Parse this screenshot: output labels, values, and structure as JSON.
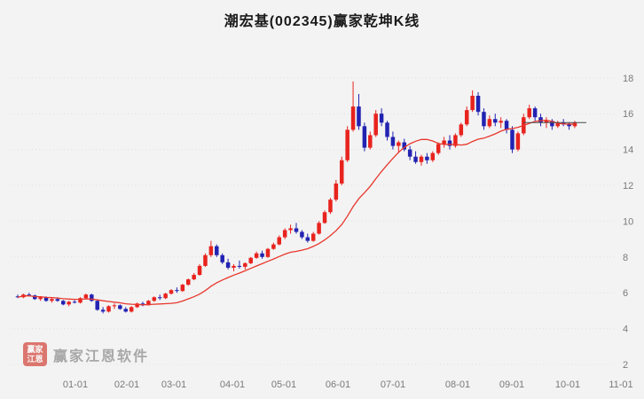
{
  "title": "潮宏基(002345)赢家乾坤K线",
  "watermark": {
    "logo_top": "赢家",
    "logo_bottom": "江恩",
    "text": "赢家江恩软件"
  },
  "colors": {
    "up": "#e8231e",
    "down": "#2222b2",
    "ma_line": "#e8372c",
    "price_line": "#4a4a4a",
    "grid": "#e0e0e0",
    "axis_text": "#7a7a7a",
    "title_text": "#1a1a1a",
    "bg": "#f3f3f3",
    "watermark_text": "#a0a0a0",
    "logo_bg": "#d03b30"
  },
  "chart_data": {
    "type": "candlestick",
    "title": "潮宏基(002345)赢家乾坤K线",
    "ylim": [
      2,
      18.6
    ],
    "y_ticks": [
      2,
      4,
      6,
      8,
      10,
      12,
      14,
      16,
      18
    ],
    "x_ticks": [
      "01-01",
      "02-01",
      "03-01",
      "04-01",
      "05-01",
      "06-01",
      "07-01",
      "08-01",
      "09-01",
      "10-01",
      "11-01"
    ],
    "grid": "dotted-horizontal",
    "legend": "none",
    "ma_window": 15,
    "last_price_line": 15.5,
    "candles": [
      [
        5.8,
        5.9,
        5.7,
        5.75
      ],
      [
        5.75,
        5.95,
        5.7,
        5.9
      ],
      [
        5.9,
        6.0,
        5.8,
        5.85
      ],
      [
        5.85,
        5.9,
        5.6,
        5.65
      ],
      [
        5.65,
        5.8,
        5.55,
        5.75
      ],
      [
        5.75,
        5.8,
        5.5,
        5.55
      ],
      [
        5.55,
        5.7,
        5.45,
        5.65
      ],
      [
        5.65,
        5.75,
        5.5,
        5.55
      ],
      [
        5.55,
        5.6,
        5.3,
        5.35
      ],
      [
        5.35,
        5.55,
        5.25,
        5.5
      ],
      [
        5.5,
        5.6,
        5.4,
        5.45
      ],
      [
        5.45,
        5.75,
        5.4,
        5.7
      ],
      [
        5.7,
        5.95,
        5.65,
        5.9
      ],
      [
        5.9,
        5.95,
        5.5,
        5.55
      ],
      [
        5.55,
        5.6,
        5.0,
        5.05
      ],
      [
        5.05,
        5.2,
        4.85,
        4.95
      ],
      [
        4.95,
        5.3,
        4.9,
        5.25
      ],
      [
        5.25,
        5.4,
        5.1,
        5.3
      ],
      [
        5.3,
        5.35,
        5.05,
        5.1
      ],
      [
        5.1,
        5.2,
        4.9,
        4.95
      ],
      [
        4.95,
        5.25,
        4.9,
        5.2
      ],
      [
        5.2,
        5.45,
        5.15,
        5.4
      ],
      [
        5.4,
        5.5,
        5.25,
        5.3
      ],
      [
        5.3,
        5.6,
        5.3,
        5.55
      ],
      [
        5.55,
        5.8,
        5.5,
        5.75
      ],
      [
        5.75,
        5.9,
        5.6,
        5.7
      ],
      [
        5.7,
        6.0,
        5.65,
        5.95
      ],
      [
        5.95,
        6.2,
        5.9,
        6.15
      ],
      [
        6.15,
        6.3,
        6.0,
        6.1
      ],
      [
        6.1,
        6.5,
        6.05,
        6.45
      ],
      [
        6.45,
        6.8,
        6.4,
        6.75
      ],
      [
        6.75,
        7.1,
        6.7,
        7.0
      ],
      [
        7.0,
        7.6,
        6.95,
        7.5
      ],
      [
        7.5,
        8.2,
        7.45,
        8.1
      ],
      [
        8.1,
        8.9,
        8.0,
        8.6
      ],
      [
        8.6,
        8.7,
        8.0,
        8.1
      ],
      [
        8.1,
        8.2,
        7.6,
        7.7
      ],
      [
        7.7,
        7.9,
        7.3,
        7.4
      ],
      [
        7.4,
        7.6,
        7.2,
        7.5
      ],
      [
        7.5,
        7.8,
        7.35,
        7.45
      ],
      [
        7.45,
        7.7,
        7.3,
        7.65
      ],
      [
        7.65,
        8.0,
        7.6,
        7.95
      ],
      [
        7.95,
        8.3,
        7.9,
        8.2
      ],
      [
        8.2,
        8.35,
        7.9,
        8.0
      ],
      [
        8.0,
        8.5,
        7.95,
        8.45
      ],
      [
        8.45,
        8.8,
        8.4,
        8.7
      ],
      [
        8.7,
        9.2,
        8.65,
        9.1
      ],
      [
        9.1,
        9.6,
        9.0,
        9.5
      ],
      [
        9.5,
        9.8,
        9.3,
        9.6
      ],
      [
        9.6,
        9.9,
        9.3,
        9.4
      ],
      [
        9.4,
        9.5,
        9.0,
        9.1
      ],
      [
        9.1,
        9.3,
        8.8,
        8.9
      ],
      [
        8.9,
        9.4,
        8.85,
        9.3
      ],
      [
        9.3,
        10.0,
        9.25,
        9.9
      ],
      [
        9.9,
        10.6,
        9.85,
        10.5
      ],
      [
        10.5,
        11.3,
        10.4,
        11.2
      ],
      [
        11.2,
        12.3,
        11.1,
        12.1
      ],
      [
        12.1,
        13.6,
        12.0,
        13.4
      ],
      [
        13.4,
        15.3,
        13.3,
        15.1
      ],
      [
        15.1,
        17.8,
        15.0,
        16.4
      ],
      [
        16.4,
        17.1,
        15.1,
        15.3
      ],
      [
        15.3,
        15.5,
        13.9,
        14.1
      ],
      [
        14.1,
        15.0,
        14.0,
        14.8
      ],
      [
        14.8,
        16.2,
        14.7,
        16.0
      ],
      [
        16.0,
        16.3,
        15.3,
        15.5
      ],
      [
        15.5,
        15.6,
        14.5,
        14.7
      ],
      [
        14.7,
        15.0,
        14.0,
        14.2
      ],
      [
        14.2,
        14.5,
        13.8,
        14.4
      ],
      [
        14.4,
        14.6,
        13.9,
        14.0
      ],
      [
        14.0,
        14.2,
        13.4,
        13.6
      ],
      [
        13.6,
        13.9,
        13.2,
        13.3
      ],
      [
        13.3,
        13.7,
        13.1,
        13.6
      ],
      [
        13.6,
        13.8,
        13.2,
        13.4
      ],
      [
        13.4,
        13.9,
        13.3,
        13.8
      ],
      [
        13.8,
        14.4,
        13.7,
        14.3
      ],
      [
        14.3,
        14.7,
        14.1,
        14.5
      ],
      [
        14.5,
        14.8,
        14.0,
        14.2
      ],
      [
        14.2,
        14.9,
        14.1,
        14.8
      ],
      [
        14.8,
        15.5,
        14.7,
        15.4
      ],
      [
        15.4,
        16.4,
        15.3,
        16.2
      ],
      [
        16.2,
        17.3,
        16.1,
        17.0
      ],
      [
        17.0,
        17.2,
        15.9,
        16.1
      ],
      [
        16.1,
        16.3,
        15.1,
        15.3
      ],
      [
        15.3,
        15.9,
        15.2,
        15.7
      ],
      [
        15.7,
        16.0,
        15.3,
        15.5
      ],
      [
        15.5,
        15.8,
        15.2,
        15.6
      ],
      [
        15.6,
        15.7,
        14.9,
        15.1
      ],
      [
        15.1,
        15.3,
        13.8,
        14.0
      ],
      [
        14.0,
        15.0,
        13.9,
        14.9
      ],
      [
        14.9,
        16.0,
        14.8,
        15.8
      ],
      [
        15.8,
        16.5,
        15.7,
        16.3
      ],
      [
        16.3,
        16.4,
        15.6,
        15.8
      ],
      [
        15.8,
        16.0,
        15.3,
        15.5
      ],
      [
        15.5,
        15.8,
        15.2,
        15.6
      ],
      [
        15.6,
        15.7,
        15.1,
        15.3
      ],
      [
        15.3,
        15.6,
        15.2,
        15.5
      ],
      [
        15.5,
        15.7,
        15.3,
        15.4
      ],
      [
        15.4,
        15.5,
        15.1,
        15.3
      ],
      [
        15.3,
        15.6,
        15.2,
        15.5
      ]
    ]
  }
}
